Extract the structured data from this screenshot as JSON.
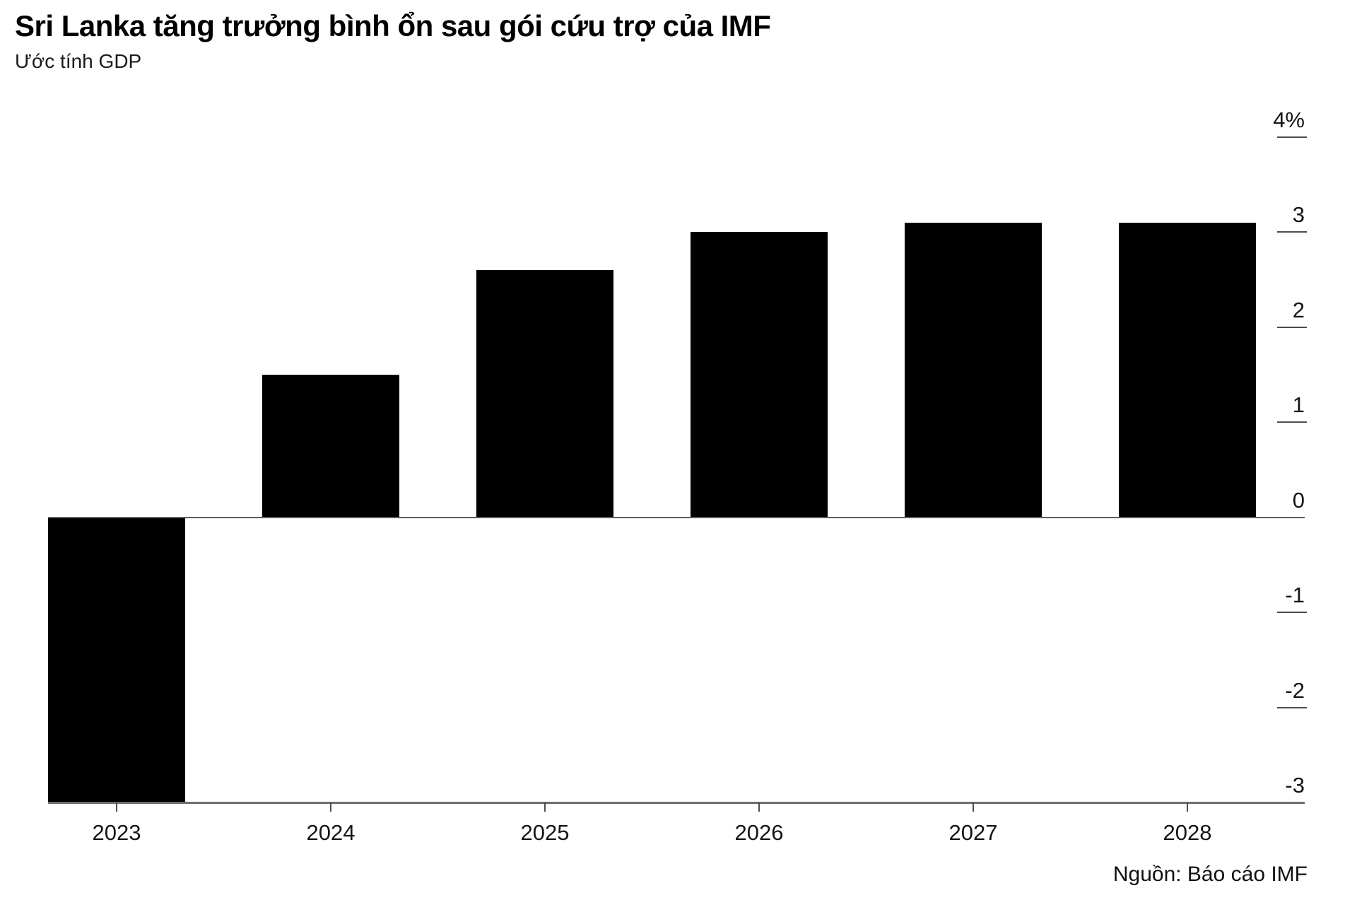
{
  "header": {
    "title": "Sri Lanka tăng trưởng bình ổn sau gói cứu trợ của IMF",
    "subtitle": "Ước tính GDP"
  },
  "footer": {
    "source": "Nguồn: Báo cáo IMF"
  },
  "chart_data": {
    "type": "bar",
    "title": "Sri Lanka tăng trưởng bình ổn sau gói cứu trợ của IMF",
    "subtitle": "Ước tính GDP",
    "source": "Nguồn: Báo cáo IMF",
    "categories": [
      "2023",
      "2024",
      "2025",
      "2026",
      "2027",
      "2028"
    ],
    "values": [
      -3.0,
      1.5,
      2.6,
      3.0,
      3.1,
      3.1
    ],
    "unit": "%",
    "xlabel": "",
    "ylabel": "",
    "ylim": [
      -3,
      4.4
    ],
    "y_ticks": [
      {
        "value": 4,
        "label": "4%"
      },
      {
        "value": 3,
        "label": "3"
      },
      {
        "value": 2,
        "label": "2"
      },
      {
        "value": 1,
        "label": "1"
      },
      {
        "value": 0,
        "label": "0"
      },
      {
        "value": -1,
        "label": "-1"
      },
      {
        "value": -2,
        "label": "-2"
      },
      {
        "value": -3,
        "label": "-3"
      }
    ],
    "grid": false,
    "legend_position": "none",
    "colors": {
      "bar": "#000000",
      "axis_line": "#6f6f6f",
      "zero_line": "#5c5c5c",
      "tick_dash": "#4d4d4d",
      "text": "#151515"
    }
  }
}
